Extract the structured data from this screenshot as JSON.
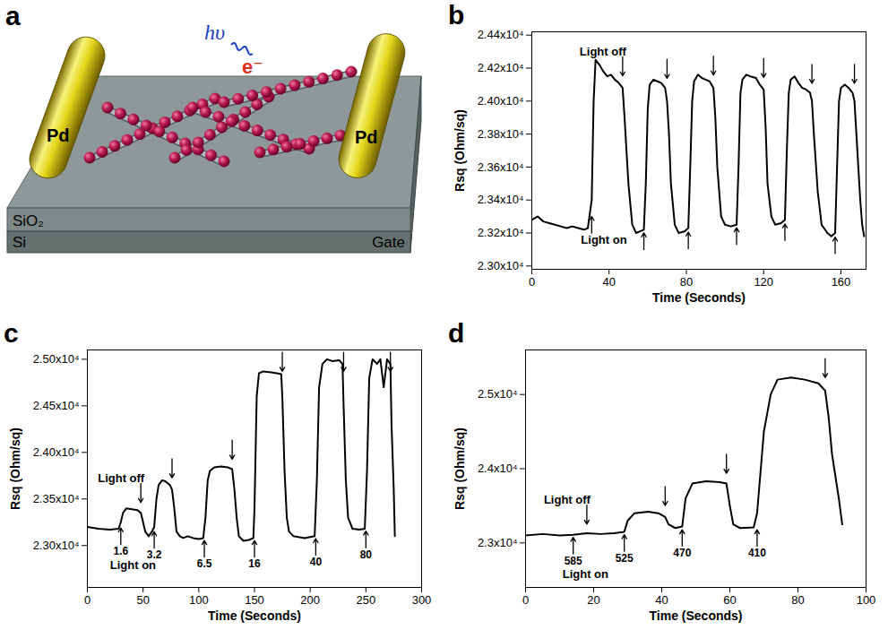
{
  "diagram": {
    "panel_label": "a",
    "electrodes": [
      "Pd",
      "Pd"
    ],
    "layers": [
      "SiO₂",
      "Si"
    ],
    "gate": "Gate",
    "photon": "hυ",
    "electron": "e⁻"
  },
  "chart_data": [
    {
      "type": "line",
      "panel_label": "b",
      "x_label": "Time (Seconds)",
      "y_label": "Rsq (Ohm/sq)",
      "color": "#000000",
      "grid": false,
      "xlim": [
        0,
        173
      ],
      "xticks": [
        0,
        40,
        80,
        120,
        160
      ],
      "ylim": [
        22980,
        24420
      ],
      "yticks": [
        {
          "value": 23000,
          "label": "2.30x10⁴"
        },
        {
          "value": 23200,
          "label": "2.32x10⁴"
        },
        {
          "value": 23400,
          "label": "2.34x10⁴"
        },
        {
          "value": 23600,
          "label": "2.36x10⁴"
        },
        {
          "value": 23800,
          "label": "2.38x10⁴"
        },
        {
          "value": 24000,
          "label": "2.40x10⁴"
        },
        {
          "value": 24200,
          "label": "2.42x10⁴"
        },
        {
          "value": 24400,
          "label": "2.44x10⁴"
        }
      ],
      "x": [
        0,
        3,
        6,
        9,
        12,
        15,
        18,
        21,
        24,
        27,
        29,
        31,
        32,
        33,
        35,
        37,
        39,
        41,
        43,
        45,
        47,
        48,
        50,
        52,
        54,
        56,
        58,
        59,
        60,
        61,
        63,
        65,
        67,
        69,
        70,
        71,
        72,
        74,
        76,
        79,
        81,
        82,
        83,
        84,
        86,
        88,
        90,
        92,
        94,
        95,
        96,
        98,
        100,
        103,
        106,
        107,
        108,
        109,
        111,
        113,
        116,
        118,
        120,
        121,
        122,
        124,
        126,
        129,
        131,
        132,
        133,
        134,
        136,
        138,
        140,
        142,
        144,
        145,
        146,
        148,
        150,
        153,
        155,
        157,
        158,
        159,
        160,
        162,
        164,
        166,
        167,
        168,
        170,
        171,
        172
      ],
      "values": [
        23280,
        23300,
        23270,
        23260,
        23250,
        23240,
        23230,
        23240,
        23230,
        23220,
        23230,
        23400,
        24000,
        24250,
        24220,
        24180,
        24150,
        24160,
        24130,
        24110,
        24080,
        23900,
        23500,
        23250,
        23200,
        23210,
        23220,
        23500,
        23950,
        24100,
        24130,
        24120,
        24110,
        24080,
        24000,
        23800,
        23500,
        23250,
        23200,
        23210,
        23230,
        23600,
        24000,
        24120,
        24160,
        24140,
        24130,
        24120,
        24080,
        23900,
        23600,
        23300,
        23250,
        23240,
        23250,
        23600,
        24050,
        24130,
        24160,
        24150,
        24140,
        24100,
        24070,
        23850,
        23500,
        23300,
        23250,
        23260,
        23280,
        23700,
        24050,
        24130,
        24150,
        24110,
        24080,
        24070,
        24050,
        24000,
        23800,
        23450,
        23250,
        23200,
        23180,
        23200,
        23600,
        24000,
        24080,
        24100,
        24080,
        24050,
        24000,
        23800,
        23400,
        23250,
        23180
      ],
      "light_on": [
        31,
        58,
        81,
        106,
        131,
        157
      ],
      "light_off": [
        47,
        70,
        94,
        120,
        145,
        167
      ],
      "on_text": "Light on",
      "off_text": "Light off"
    },
    {
      "type": "line",
      "panel_label": "c",
      "x_label": "Time (Seconds)",
      "y_label": "Rsq (Ohm/sq)",
      "color": "#000000",
      "grid": false,
      "xlim": [
        0,
        300
      ],
      "xticks": [
        0,
        50,
        100,
        150,
        200,
        250,
        300
      ],
      "ylim": [
        22550,
        25100
      ],
      "yticks": [
        {
          "value": 23000,
          "label": "2.30x10⁴"
        },
        {
          "value": 23500,
          "label": "2.35x10⁴"
        },
        {
          "value": 24000,
          "label": "2.40x10⁴"
        },
        {
          "value": 24500,
          "label": "2.45x10⁴"
        },
        {
          "value": 25000,
          "label": "2.50x10⁴"
        }
      ],
      "x": [
        0,
        10,
        20,
        28,
        30,
        32,
        35,
        40,
        45,
        48,
        50,
        52,
        55,
        58,
        60,
        62,
        64,
        67,
        70,
        74,
        76,
        78,
        80,
        83,
        86,
        90,
        95,
        100,
        104,
        106,
        108,
        110,
        114,
        120,
        126,
        130,
        132,
        134,
        136,
        140,
        145,
        149,
        150,
        152,
        154,
        158,
        165,
        170,
        174,
        175,
        177,
        179,
        181,
        185,
        195,
        204,
        206,
        208,
        211,
        215,
        220,
        226,
        229,
        230,
        232,
        234,
        238,
        244,
        249,
        251,
        253,
        256,
        260,
        263,
        266,
        269,
        272,
        273,
        275,
        276
      ],
      "values": [
        23200,
        23180,
        23170,
        23180,
        23250,
        23350,
        23400,
        23390,
        23380,
        23350,
        23250,
        23150,
        23100,
        23150,
        23200,
        23500,
        23650,
        23700,
        23690,
        23650,
        23600,
        23400,
        23150,
        23100,
        23080,
        23100,
        23080,
        23070,
        23080,
        23300,
        23700,
        23800,
        23840,
        23850,
        23840,
        23820,
        23600,
        23300,
        23100,
        23050,
        23060,
        23080,
        23400,
        24600,
        24850,
        24870,
        24860,
        24850,
        24840,
        24600,
        23800,
        23300,
        23150,
        23100,
        23080,
        23100,
        23700,
        24700,
        24950,
        25000,
        24980,
        24990,
        24950,
        24500,
        23700,
        23300,
        23180,
        23170,
        23180,
        23800,
        24800,
        25000,
        24950,
        25000,
        24700,
        25000,
        24950,
        24300,
        23600,
        23100
      ],
      "light_on": [
        30,
        60,
        105,
        150,
        205,
        250
      ],
      "light_off": [
        48,
        76,
        130,
        175,
        230,
        272
      ],
      "on_labels": [
        "1.6",
        "3.2",
        "6.5",
        "16",
        "40",
        "80"
      ],
      "on_text": "Light on",
      "off_text": "Light off"
    },
    {
      "type": "line",
      "panel_label": "d",
      "x_label": "Time (Seconds)",
      "y_label": "Rsq (Ohm/sq)",
      "color": "#000000",
      "grid": false,
      "xlim": [
        0,
        100
      ],
      "xticks": [
        0,
        20,
        40,
        60,
        80,
        100
      ],
      "ylim": [
        22400,
        25600
      ],
      "yticks": [
        {
          "value": 23000,
          "label": "2.3x10⁴"
        },
        {
          "value": 24000,
          "label": "2.4x10⁴"
        },
        {
          "value": 25000,
          "label": "2.5x10⁴"
        }
      ],
      "x": [
        0,
        5,
        10,
        14,
        18,
        22,
        26,
        29,
        30,
        32,
        36,
        39,
        41,
        42,
        44,
        46,
        47,
        49,
        53,
        57,
        59,
        60,
        61,
        63,
        67,
        68,
        70,
        72,
        74,
        78,
        82,
        86,
        88,
        89,
        90,
        92,
        93
      ],
      "values": [
        23100,
        23120,
        23100,
        23110,
        23130,
        23120,
        23130,
        23150,
        23300,
        23400,
        23420,
        23400,
        23350,
        23250,
        23200,
        23220,
        23600,
        23800,
        23830,
        23820,
        23800,
        23500,
        23250,
        23200,
        23210,
        23400,
        24500,
        25000,
        25200,
        25230,
        25200,
        25150,
        25050,
        24700,
        24200,
        23600,
        23250
      ],
      "light_on": [
        14,
        29,
        46,
        68
      ],
      "light_off": [
        18,
        41,
        59,
        88
      ],
      "on_labels": [
        "585",
        "525",
        "470",
        "410"
      ],
      "on_text": "Light on",
      "off_text": "Light off"
    }
  ]
}
